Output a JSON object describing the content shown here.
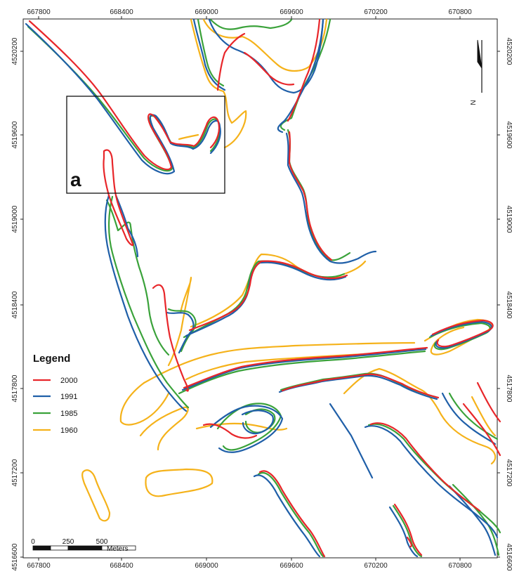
{
  "map": {
    "x_ticks": [
      "667800",
      "668400",
      "669000",
      "669600",
      "670200",
      "670800"
    ],
    "y_ticks": [
      "4520200",
      "4519600",
      "4519000",
      "4518400",
      "4517800",
      "4517200",
      "4516600"
    ],
    "inset_label": "a",
    "north_label": "N"
  },
  "legend": {
    "title": "Legend",
    "items": [
      {
        "label": "2000",
        "color": "#e8262a"
      },
      {
        "label": "1991",
        "color": "#1f5fa8"
      },
      {
        "label": "1985",
        "color": "#3aa23a"
      },
      {
        "label": "1960",
        "color": "#f5b21a"
      }
    ]
  },
  "scale_bar": {
    "labels": [
      "0",
      "250",
      "500"
    ],
    "unit": "Meters"
  }
}
